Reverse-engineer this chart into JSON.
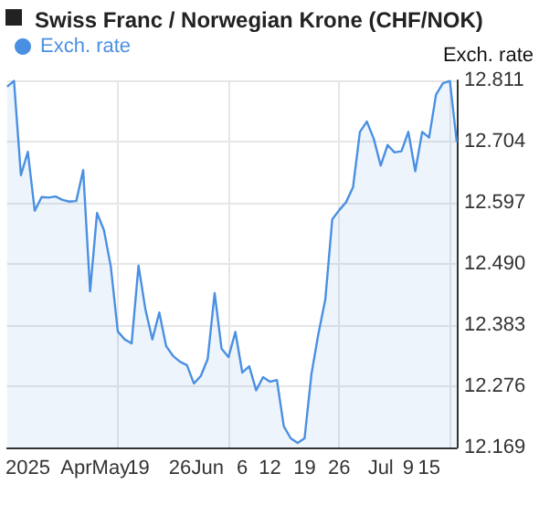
{
  "chart_data": {
    "type": "area",
    "title": "Swiss Franc / Norwegian Krone (CHF/NOK)",
    "ylabel": "Exch. rate",
    "categories": [
      null,
      null,
      null,
      "2025",
      null,
      null,
      null,
      null,
      null,
      null,
      "Apr",
      null,
      null,
      null,
      null,
      "May",
      null,
      null,
      null,
      "19",
      null,
      null,
      null,
      null,
      null,
      "26",
      null,
      null,
      null,
      "Jun",
      null,
      null,
      null,
      null,
      "6",
      null,
      null,
      null,
      "12",
      null,
      null,
      null,
      null,
      "19",
      null,
      null,
      null,
      null,
      "26",
      null,
      null,
      null,
      null,
      null,
      "Jul",
      null,
      null,
      null,
      "9",
      null,
      null,
      "15",
      null,
      null,
      null,
      null
    ],
    "series": [
      {
        "name": "Exch. rate",
        "color": "#4a90e2",
        "values": [
          12.8,
          12.81,
          12.645,
          12.686,
          12.583,
          12.607,
          12.606,
          12.608,
          12.602,
          12.599,
          12.6,
          12.654,
          12.442,
          12.579,
          12.549,
          12.485,
          12.372,
          12.358,
          12.351,
          12.487,
          12.41,
          12.358,
          12.405,
          12.346,
          12.329,
          12.319,
          12.313,
          12.281,
          12.294,
          12.324,
          12.439,
          12.342,
          12.327,
          12.371,
          12.3,
          12.311,
          12.269,
          12.292,
          12.284,
          12.287,
          12.206,
          12.185,
          12.177,
          12.185,
          12.298,
          12.368,
          12.428,
          12.568,
          12.584,
          12.598,
          12.624,
          12.721,
          12.739,
          12.709,
          12.662,
          12.698,
          12.685,
          12.687,
          12.721,
          12.652,
          12.721,
          12.711,
          12.786,
          12.806,
          12.81,
          12.703
        ]
      }
    ],
    "ylim": [
      12.169,
      12.811
    ],
    "yticks": [
      12.169,
      12.276,
      12.383,
      {
        "value": 12.49,
        "label": "12.490"
      },
      12.597,
      12.704,
      12.811
    ],
    "grid": true,
    "legend": "top left",
    "marker": "none"
  }
}
